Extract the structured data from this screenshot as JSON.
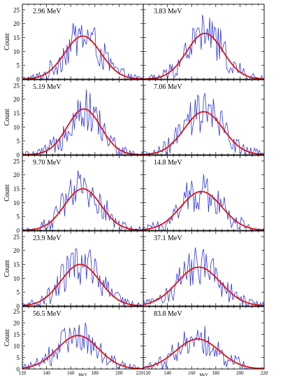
{
  "figure": {
    "y_label": "Count",
    "x_label": "MeV",
    "colors": {
      "histogram": "#2b35e0",
      "fit": "#e01010",
      "frame": "#000000"
    }
  },
  "chart_data": [
    {
      "type": "line",
      "title": "2.96 MeV",
      "xlim": [
        120,
        220
      ],
      "ylim": [
        0,
        27
      ],
      "grid": false,
      "xticks": [
        120,
        140,
        160,
        180,
        200,
        220
      ],
      "yticks": [
        0,
        5,
        10,
        15,
        20,
        25
      ],
      "xlabel": "MeV",
      "ylabel": "Count",
      "fit": {
        "mean": 170,
        "sigma": 15,
        "amplitude": 15.5
      }
    },
    {
      "type": "line",
      "title": "3.83 MeV",
      "xlim": [
        120,
        220
      ],
      "ylim": [
        0,
        27
      ],
      "grid": false,
      "xticks": [
        120,
        140,
        160,
        180,
        200,
        220
      ],
      "yticks": [
        0,
        5,
        10,
        15,
        20,
        25
      ],
      "xlabel": "MeV",
      "ylabel": "Count",
      "fit": {
        "mean": 171,
        "sigma": 15,
        "amplitude": 16.5
      }
    },
    {
      "type": "line",
      "title": "5.19 MeV",
      "xlim": [
        120,
        220
      ],
      "ylim": [
        0,
        27
      ],
      "grid": false,
      "xticks": [
        120,
        140,
        160,
        180,
        200,
        220
      ],
      "yticks": [
        0,
        5,
        10,
        15,
        20,
        25
      ],
      "xlabel": "MeV",
      "ylabel": "Count",
      "fit": {
        "mean": 171,
        "sigma": 14,
        "amplitude": 16.5
      }
    },
    {
      "type": "line",
      "title": "7.06 MeV",
      "xlim": [
        120,
        220
      ],
      "ylim": [
        0,
        27
      ],
      "grid": false,
      "xticks": [
        120,
        140,
        160,
        180,
        200,
        220
      ],
      "yticks": [
        0,
        5,
        10,
        15,
        20,
        25
      ],
      "xlabel": "MeV",
      "ylabel": "Count",
      "fit": {
        "mean": 170,
        "sigma": 16,
        "amplitude": 15.5
      }
    },
    {
      "type": "line",
      "title": "9.70 MeV",
      "xlim": [
        120,
        220
      ],
      "ylim": [
        0,
        27
      ],
      "grid": false,
      "xticks": [
        120,
        140,
        160,
        180,
        200,
        220
      ],
      "yticks": [
        0,
        5,
        10,
        15,
        20,
        25
      ],
      "xlabel": "MeV",
      "ylabel": "Count",
      "fit": {
        "mean": 170,
        "sigma": 15,
        "amplitude": 15
      }
    },
    {
      "type": "line",
      "title": "14.8 MeV",
      "xlim": [
        120,
        220
      ],
      "ylim": [
        0,
        27
      ],
      "grid": false,
      "xticks": [
        120,
        140,
        160,
        180,
        200,
        220
      ],
      "yticks": [
        0,
        5,
        10,
        15,
        20,
        25
      ],
      "xlabel": "MeV",
      "ylabel": "Count",
      "fit": {
        "mean": 168,
        "sigma": 17,
        "amplitude": 14
      }
    },
    {
      "type": "line",
      "title": "23.9 MeV",
      "xlim": [
        120,
        220
      ],
      "ylim": [
        0,
        27
      ],
      "grid": false,
      "xticks": [
        120,
        140,
        160,
        180,
        200,
        220
      ],
      "yticks": [
        0,
        5,
        10,
        15,
        20,
        25
      ],
      "xlabel": "MeV",
      "ylabel": "Count",
      "fit": {
        "mean": 168,
        "sigma": 16,
        "amplitude": 15
      }
    },
    {
      "type": "line",
      "title": "37.1 MeV",
      "xlim": [
        120,
        220
      ],
      "ylim": [
        0,
        27
      ],
      "grid": false,
      "xticks": [
        120,
        140,
        160,
        180,
        200,
        220
      ],
      "yticks": [
        0,
        5,
        10,
        15,
        20,
        25
      ],
      "xlabel": "MeV",
      "ylabel": "Count",
      "fit": {
        "mean": 166,
        "sigma": 18,
        "amplitude": 14
      }
    },
    {
      "type": "line",
      "title": "56.5 MeV",
      "xlim": [
        120,
        220
      ],
      "ylim": [
        0,
        27
      ],
      "grid": false,
      "xticks": [
        120,
        140,
        160,
        180,
        200,
        220
      ],
      "yticks": [
        0,
        5,
        10,
        15,
        20,
        25
      ],
      "xlabel": "MeV",
      "ylabel": "Count",
      "fit": {
        "mean": 166,
        "sigma": 17,
        "amplitude": 14.5
      }
    },
    {
      "type": "line",
      "title": "83.8 MeV",
      "xlim": [
        120,
        220
      ],
      "ylim": [
        0,
        27
      ],
      "grid": false,
      "xticks": [
        120,
        140,
        160,
        180,
        200,
        220
      ],
      "yticks": [
        0,
        5,
        10,
        15,
        20,
        25
      ],
      "xlabel": "MeV",
      "ylabel": "Count",
      "fit": {
        "mean": 165,
        "sigma": 18,
        "amplitude": 13
      }
    }
  ]
}
